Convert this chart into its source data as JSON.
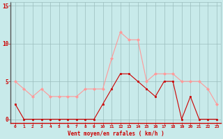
{
  "hours": [
    0,
    1,
    2,
    3,
    4,
    5,
    6,
    7,
    8,
    9,
    10,
    11,
    12,
    13,
    14,
    15,
    16,
    17,
    18,
    19,
    20,
    21,
    22,
    23
  ],
  "vent_moyen": [
    2,
    0,
    0,
    0,
    0,
    0,
    0,
    0,
    0,
    0,
    2,
    4,
    6,
    6,
    5,
    4,
    3,
    5,
    5,
    0,
    3,
    0,
    0,
    0
  ],
  "en_rafales": [
    5,
    4,
    3,
    4,
    3,
    3,
    3,
    3,
    4,
    4,
    4,
    8,
    11.5,
    10.5,
    10.5,
    5,
    6,
    6,
    6,
    5,
    5,
    5,
    4,
    2
  ],
  "bg_color": "#c8eaea",
  "grid_color": "#9bbdbd",
  "line_color_moyen": "#cc0000",
  "line_color_rafales": "#ff9999",
  "marker_color_moyen": "#cc0000",
  "marker_color_rafales": "#ff9999",
  "xlabel": "Vent moyen/en rafales ( km/h )",
  "xlabel_color": "#cc0000",
  "tick_color": "#cc0000",
  "ylim": [
    -0.5,
    15.5
  ],
  "yticks": [
    0,
    5,
    10,
    15
  ],
  "axis_color": "#cc0000",
  "spine_bottom_color": "#cc0000"
}
